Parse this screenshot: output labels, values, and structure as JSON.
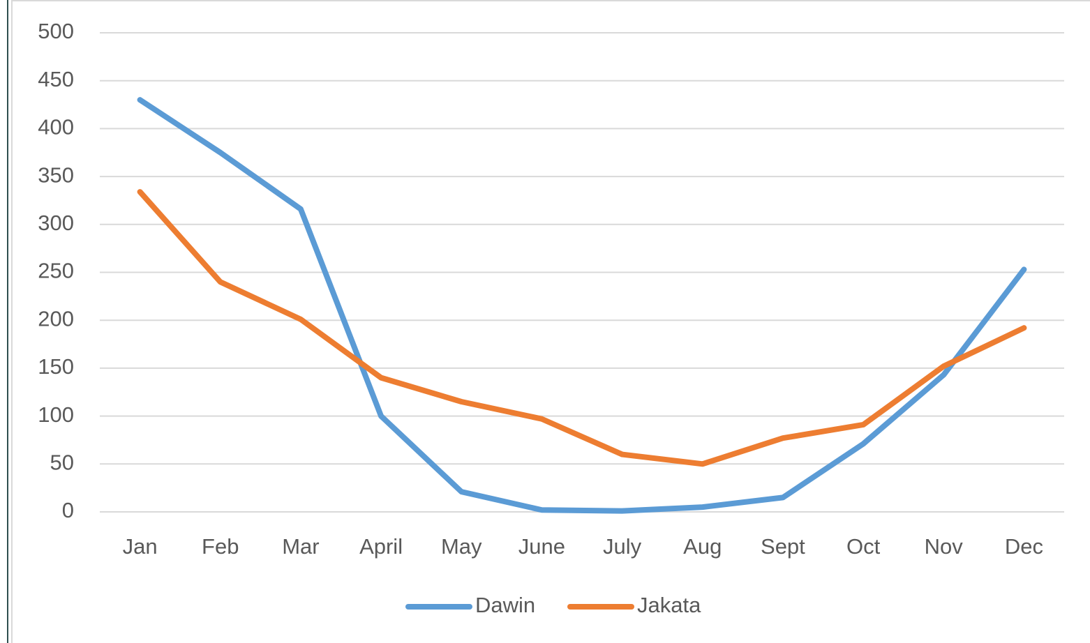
{
  "chart_data": {
    "type": "line",
    "categories": [
      "Jan",
      "Feb",
      "Mar",
      "April",
      "May",
      "June",
      "July",
      "Aug",
      "Sept",
      "Oct",
      "Nov",
      "Dec"
    ],
    "series": [
      {
        "name": "Dawin",
        "color": "#5b9bd5",
        "values": [
          430,
          375,
          316,
          100,
          21,
          2,
          1,
          5,
          15,
          71,
          143,
          253
        ]
      },
      {
        "name": "Jakata",
        "color": "#ed7d31",
        "values": [
          334,
          240,
          201,
          140,
          115,
          97,
          60,
          50,
          77,
          91,
          152,
          192
        ]
      }
    ],
    "ylim": [
      0,
      500
    ],
    "yticks": [
      0,
      50,
      100,
      150,
      200,
      250,
      300,
      350,
      400,
      450,
      500
    ],
    "grid": true,
    "legend": "bottom"
  }
}
